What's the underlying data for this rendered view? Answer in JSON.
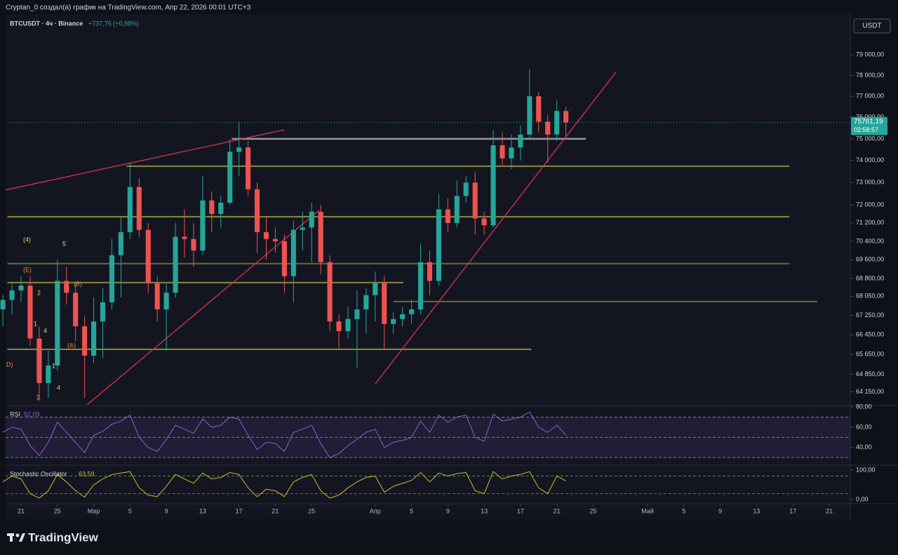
{
  "header": {
    "title": "Cryptan_0 создал(а) график на TradingView.com, Апр 22, 2026 00:01 UTC+3",
    "symbol": "BTCUSDT · 4ч · Binance",
    "change": "+737,76 (+0,98%)",
    "currency": "USDT",
    "brand": "TradingView"
  },
  "annotations": [
    "(4)",
    "5",
    "(E)",
    "2",
    "(B)",
    "1",
    "4",
    "3",
    "(A)",
    "D)",
    "1",
    "4",
    "3"
  ],
  "chart_data": [
    {
      "type": "candlestick",
      "up_color": "#26a69a",
      "down_color": "#ef5350",
      "open": [
        67500,
        67900,
        68300,
        68500,
        66300,
        64500,
        65200,
        68700,
        68200,
        66800,
        65600,
        67000,
        67800,
        69800,
        70800,
        72800,
        70900,
        68600,
        67500,
        68200,
        70600,
        70500,
        70000,
        72200,
        71600,
        72100,
        74400,
        74600,
        72700,
        70800,
        70500,
        70400,
        68900,
        70900,
        71000,
        71700,
        69500,
        67000,
        66600,
        67100,
        67500,
        68100,
        68600,
        66900,
        67100,
        67300,
        67500,
        69500,
        68700,
        71800,
        71200,
        72400,
        73000,
        71400,
        71100,
        74700,
        74100,
        74600,
        75200,
        77000,
        75800,
        75200,
        76300
      ],
      "high": [
        68100,
        68600,
        68900,
        68900,
        66800,
        65800,
        69600,
        69300,
        68600,
        67200,
        68000,
        68400,
        70500,
        71500,
        73900,
        73200,
        71200,
        68900,
        68600,
        71200,
        71800,
        71200,
        73300,
        72600,
        72400,
        75000,
        75800,
        74900,
        73000,
        71500,
        71000,
        70700,
        71300,
        71700,
        72100,
        72000,
        69800,
        67300,
        67600,
        68300,
        68400,
        69100,
        68900,
        67400,
        67600,
        67900,
        70300,
        70000,
        72500,
        72300,
        73100,
        73300,
        73500,
        71700,
        75400,
        75300,
        75200,
        75600,
        78300,
        77200,
        76100,
        76800,
        76500
      ],
      "low": [
        66800,
        67300,
        67800,
        66000,
        63800,
        63900,
        65000,
        67700,
        66200,
        63900,
        65300,
        65500,
        67500,
        68000,
        70500,
        70600,
        68200,
        67000,
        65800,
        68000,
        69700,
        69300,
        69800,
        70800,
        71000,
        72000,
        73300,
        72400,
        69900,
        69600,
        69900,
        68200,
        67800,
        70000,
        69500,
        69000,
        66600,
        65900,
        66300,
        65100,
        66500,
        67000,
        65900,
        66500,
        66800,
        66900,
        67300,
        68100,
        68500,
        70800,
        71000,
        72100,
        70700,
        70700,
        71000,
        73800,
        73600,
        74000,
        75000,
        75300,
        73900,
        74900,
        75100
      ],
      "close": [
        67900,
        68300,
        68500,
        66300,
        64500,
        65200,
        68700,
        68200,
        66800,
        65600,
        67000,
        67800,
        69800,
        70800,
        72800,
        70900,
        68600,
        67500,
        68200,
        70600,
        70500,
        70000,
        72200,
        71600,
        72100,
        74400,
        74600,
        72700,
        70800,
        70500,
        70400,
        68900,
        70900,
        71000,
        71700,
        69500,
        67000,
        66600,
        67100,
        67500,
        68100,
        68600,
        66900,
        67100,
        67300,
        67500,
        69500,
        68700,
        71800,
        71200,
        72400,
        73000,
        71400,
        71100,
        74700,
        74100,
        74600,
        75200,
        77000,
        75800,
        75200,
        76300,
        75761.19
      ],
      "xlim": [
        -0.32,
        93.32
      ],
      "ylim": [
        63610,
        81010
      ],
      "log": true,
      "yticks": [
        {
          "value": 79000,
          "label": "79 000,00"
        },
        {
          "value": 78000,
          "label": "78 000,00"
        },
        {
          "value": 77000,
          "label": "77 000,00"
        },
        {
          "value": 76000,
          "label": "76 000,00"
        },
        {
          "value": 75000,
          "label": "75 000,00"
        },
        {
          "value": 74000,
          "label": "74 000,00"
        },
        {
          "value": 73000,
          "label": "73 000,00"
        },
        {
          "value": 72000,
          "label": "72 000,00"
        },
        {
          "value": 71200,
          "label": "71 200,00"
        },
        {
          "value": 70400,
          "label": "70 400,00"
        },
        {
          "value": 69600,
          "label": "69 600,00"
        },
        {
          "value": 68800,
          "label": "68 800,00"
        },
        {
          "value": 68050,
          "label": "68 050,00"
        },
        {
          "value": 67250,
          "label": "67 250,00"
        },
        {
          "value": 66450,
          "label": "66 450,00"
        },
        {
          "value": 65650,
          "label": "65 650,00"
        },
        {
          "value": 64850,
          "label": "64 850,00"
        },
        {
          "value": 64150,
          "label": "64 150,00"
        }
      ],
      "xticks": [
        {
          "value": 2,
          "label": "21"
        },
        {
          "value": 6,
          "label": "25"
        },
        {
          "value": 10,
          "label": "Мар"
        },
        {
          "value": 14,
          "label": "5"
        },
        {
          "value": 18,
          "label": "9"
        },
        {
          "value": 22,
          "label": "13"
        },
        {
          "value": 26,
          "label": "17"
        },
        {
          "value": 30,
          "label": "21"
        },
        {
          "value": 34,
          "label": "25"
        },
        {
          "value": 41,
          "label": "Апр"
        },
        {
          "value": 45,
          "label": "5"
        },
        {
          "value": 49,
          "label": "9"
        },
        {
          "value": 53,
          "label": "13"
        },
        {
          "value": 57,
          "label": "17"
        },
        {
          "value": 61,
          "label": "21"
        },
        {
          "value": 65,
          "label": "25"
        },
        {
          "value": 71,
          "label": "Май"
        },
        {
          "value": 75,
          "label": "5"
        },
        {
          "value": 79,
          "label": "9"
        },
        {
          "value": 83,
          "label": "13"
        },
        {
          "value": 87,
          "label": "17"
        },
        {
          "value": 91,
          "label": "21"
        }
      ],
      "last_price_label": "75761,19",
      "countdown": "02:58:57",
      "levels": [
        {
          "price": 75000,
          "from": 25.2,
          "to": 64.2,
          "color": "#9598a1"
        },
        {
          "price": 73743,
          "from": 13.6,
          "to": 86.6,
          "color": "#8c8a3c"
        },
        {
          "price": 71478,
          "from": 0.5,
          "to": 86.6,
          "color": "#8c8a3c"
        },
        {
          "price": 69435,
          "from": 0.5,
          "to": 86.6,
          "color": "#6b6a34"
        },
        {
          "price": 68627,
          "from": 0.5,
          "to": 44.1,
          "color": "#8c8a3c"
        },
        {
          "price": 67830,
          "from": 43.0,
          "to": 89.7,
          "color": "#6b6a34"
        },
        {
          "price": 65857,
          "from": 0.5,
          "to": 58.2,
          "color": "#8c8a3c"
        }
      ],
      "trendlines": [
        {
          "from": [
            0.3,
            72667
          ],
          "to": [
            31.0,
            75423
          ],
          "color": "#d8334a"
        },
        {
          "from": [
            9.3,
            63650
          ],
          "to": [
            34.8,
            71757
          ],
          "color": "#d8334a"
        },
        {
          "from": [
            41.0,
            64460
          ],
          "to": [
            67.5,
            78150
          ],
          "color": "#d8334a"
        }
      ]
    },
    {
      "type": "line",
      "name": "RSI",
      "value_label": "52,09",
      "color": "#8e5fd0",
      "values": [
        55,
        60,
        58,
        42,
        32,
        45,
        65,
        55,
        45,
        35,
        52,
        56,
        63,
        66,
        72,
        50,
        40,
        36,
        48,
        62,
        58,
        54,
        68,
        60,
        62,
        70,
        68,
        52,
        38,
        45,
        44,
        36,
        55,
        58,
        62,
        44,
        30,
        34,
        42,
        48,
        55,
        58,
        40,
        45,
        47,
        50,
        66,
        55,
        72,
        65,
        70,
        72,
        50,
        46,
        73,
        66,
        68,
        70,
        75,
        60,
        55,
        62,
        52.09
      ],
      "ylim": [
        22.5,
        81.4
      ],
      "yticks": [
        {
          "value": 80,
          "label": "80,00"
        },
        {
          "value": 60,
          "label": "60,00"
        },
        {
          "value": 40,
          "label": "40,00"
        }
      ],
      "band": [
        30,
        50,
        70
      ]
    },
    {
      "type": "line",
      "name": "Stochastic Oscillator",
      "value_label": "63,59",
      "color": "#d4b82a",
      "values": [
        60,
        80,
        70,
        20,
        5,
        30,
        85,
        60,
        30,
        8,
        50,
        70,
        85,
        90,
        95,
        40,
        15,
        10,
        45,
        85,
        70,
        55,
        90,
        70,
        75,
        92,
        85,
        40,
        10,
        35,
        30,
        10,
        60,
        75,
        85,
        30,
        5,
        15,
        40,
        60,
        75,
        80,
        25,
        45,
        55,
        65,
        92,
        60,
        90,
        80,
        88,
        92,
        30,
        20,
        95,
        70,
        80,
        85,
        95,
        40,
        20,
        80,
        63.59
      ],
      "ylim": [
        -14.3,
        116.7
      ],
      "yticks": [
        {
          "value": 100,
          "label": "100,00"
        },
        {
          "value": 0,
          "label": "0,00"
        }
      ],
      "band": [
        20,
        80
      ]
    }
  ]
}
